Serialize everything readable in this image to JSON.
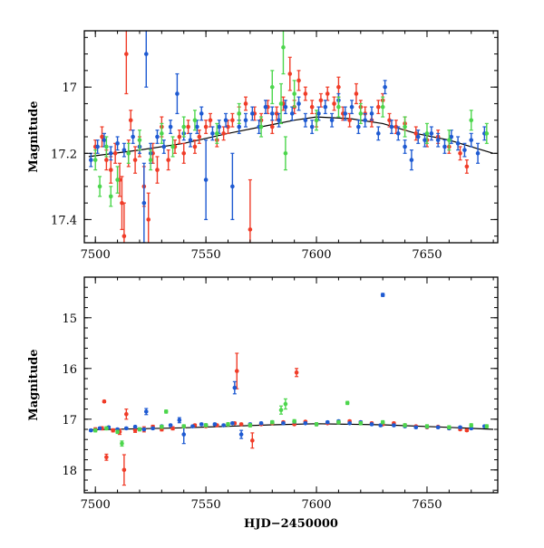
{
  "colors": {
    "red": "#f03c28",
    "blue": "#1e5ad2",
    "green": "#4cd64c",
    "model": "#000000"
  },
  "chart_data": [
    {
      "type": "scatter",
      "panel": "top",
      "title": "",
      "xlabel": "",
      "ylabel": "Magnitude",
      "xlim": [
        7495,
        7682
      ],
      "ylim": [
        16.83,
        17.47
      ],
      "y_inverted": true,
      "xticks": [
        7500,
        7550,
        7600,
        7650
      ],
      "xtick_labels": [
        "7500",
        "7550",
        "7600",
        "7650"
      ],
      "yticks": [
        17.0,
        17.2,
        17.4
      ],
      "ytick_labels": [
        "17",
        "17.2",
        "17.4"
      ],
      "grid": false,
      "legend": "none",
      "model_curve": {
        "x": [
          7497,
          7520,
          7540,
          7560,
          7575,
          7590,
          7600,
          7615,
          7630,
          7645,
          7660,
          7680
        ],
        "y": [
          17.21,
          17.19,
          17.17,
          17.14,
          17.12,
          17.1,
          17.09,
          17.095,
          17.11,
          17.14,
          17.16,
          17.2
        ]
      },
      "series": [
        {
          "color": "red",
          "x": [
            7500,
            7503,
            7505,
            7507,
            7509,
            7511,
            7512,
            7513,
            7514,
            7515,
            7516,
            7518,
            7520,
            7522,
            7524,
            7526,
            7528,
            7530,
            7533,
            7536,
            7538,
            7540,
            7542,
            7545,
            7547,
            7550,
            7552,
            7555,
            7558,
            7560,
            7562,
            7565,
            7568,
            7570,
            7572,
            7575,
            7578,
            7580,
            7582,
            7585,
            7588,
            7590,
            7592,
            7595,
            7598,
            7600,
            7602,
            7605,
            7608,
            7610,
            7612,
            7615,
            7618,
            7620,
            7622,
            7625,
            7628,
            7630,
            7633,
            7636,
            7640,
            7645,
            7650,
            7655,
            7660,
            7665,
            7668
          ],
          "y": [
            17.18,
            17.15,
            17.22,
            17.25,
            17.2,
            17.28,
            17.35,
            17.45,
            16.9,
            17.2,
            17.1,
            17.22,
            17.18,
            17.3,
            17.4,
            17.2,
            17.25,
            17.12,
            17.22,
            17.18,
            17.15,
            17.2,
            17.12,
            17.18,
            17.15,
            17.12,
            17.1,
            17.16,
            17.14,
            17.12,
            17.1,
            17.08,
            17.05,
            17.43,
            17.08,
            17.1,
            17.06,
            17.12,
            17.08,
            17.05,
            16.96,
            17.06,
            16.98,
            17.02,
            17.06,
            17.1,
            17.04,
            17.02,
            17.05,
            17.0,
            17.08,
            17.1,
            17.02,
            17.06,
            17.08,
            17.1,
            17.06,
            17.04,
            17.1,
            17.12,
            17.11,
            17.14,
            17.16,
            17.15,
            17.18,
            17.2,
            17.24
          ],
          "err": [
            0.02,
            0.03,
            0.03,
            0.04,
            0.03,
            0.05,
            0.08,
            0.1,
            0.12,
            0.04,
            0.03,
            0.04,
            0.03,
            0.06,
            0.08,
            0.03,
            0.04,
            0.03,
            0.03,
            0.02,
            0.02,
            0.03,
            0.02,
            0.02,
            0.02,
            0.02,
            0.02,
            0.02,
            0.02,
            0.02,
            0.02,
            0.02,
            0.02,
            0.15,
            0.02,
            0.02,
            0.02,
            0.02,
            0.02,
            0.02,
            0.05,
            0.02,
            0.03,
            0.02,
            0.02,
            0.02,
            0.02,
            0.02,
            0.02,
            0.03,
            0.02,
            0.02,
            0.03,
            0.02,
            0.02,
            0.02,
            0.02,
            0.02,
            0.02,
            0.02,
            0.02,
            0.02,
            0.02,
            0.02,
            0.02,
            0.02,
            0.02
          ]
        },
        {
          "color": "blue",
          "x": [
            7498,
            7501,
            7504,
            7507,
            7510,
            7513,
            7517,
            7520,
            7522,
            7523,
            7525,
            7528,
            7531,
            7534,
            7537,
            7540,
            7543,
            7546,
            7548,
            7550,
            7553,
            7556,
            7559,
            7562,
            7565,
            7568,
            7571,
            7574,
            7577,
            7580,
            7583,
            7586,
            7589,
            7592,
            7595,
            7598,
            7601,
            7604,
            7607,
            7610,
            7613,
            7616,
            7619,
            7622,
            7625,
            7628,
            7631,
            7634,
            7637,
            7640,
            7643,
            7646,
            7649,
            7652,
            7655,
            7658,
            7661,
            7664,
            7667,
            7670,
            7673,
            7676
          ],
          "y": [
            17.22,
            17.18,
            17.16,
            17.2,
            17.17,
            17.19,
            17.15,
            17.18,
            17.35,
            16.9,
            17.2,
            17.15,
            17.18,
            17.12,
            17.02,
            17.14,
            17.16,
            17.12,
            17.08,
            17.28,
            17.14,
            17.12,
            17.1,
            17.3,
            17.12,
            17.1,
            17.08,
            17.12,
            17.06,
            17.08,
            17.1,
            17.06,
            17.08,
            17.05,
            17.1,
            17.12,
            17.08,
            17.06,
            17.1,
            17.04,
            17.08,
            17.06,
            17.12,
            17.1,
            17.08,
            17.14,
            17.0,
            17.12,
            17.14,
            17.18,
            17.22,
            17.15,
            17.16,
            17.14,
            17.16,
            17.18,
            17.15,
            17.17,
            17.19,
            17.16,
            17.2,
            17.14
          ],
          "err": [
            0.02,
            0.02,
            0.02,
            0.02,
            0.02,
            0.02,
            0.02,
            0.02,
            0.12,
            0.1,
            0.03,
            0.02,
            0.02,
            0.02,
            0.06,
            0.02,
            0.02,
            0.02,
            0.02,
            0.12,
            0.02,
            0.02,
            0.02,
            0.1,
            0.02,
            0.02,
            0.02,
            0.02,
            0.02,
            0.02,
            0.02,
            0.02,
            0.02,
            0.02,
            0.02,
            0.02,
            0.02,
            0.02,
            0.02,
            0.02,
            0.02,
            0.02,
            0.02,
            0.02,
            0.02,
            0.02,
            0.02,
            0.02,
            0.02,
            0.02,
            0.03,
            0.02,
            0.02,
            0.02,
            0.02,
            0.02,
            0.02,
            0.02,
            0.02,
            0.02,
            0.03,
            0.02
          ]
        },
        {
          "color": "green",
          "x": [
            7500,
            7502,
            7505,
            7507,
            7510,
            7515,
            7520,
            7525,
            7530,
            7535,
            7540,
            7545,
            7555,
            7565,
            7575,
            7580,
            7584,
            7585,
            7586,
            7590,
            7600,
            7610,
            7620,
            7630,
            7640,
            7650,
            7660,
            7670,
            7677
          ],
          "y": [
            17.22,
            17.3,
            17.18,
            17.33,
            17.28,
            17.2,
            17.16,
            17.22,
            17.14,
            17.18,
            17.12,
            17.1,
            17.14,
            17.08,
            17.12,
            17.0,
            17.05,
            16.88,
            17.2,
            17.02,
            17.1,
            17.06,
            17.08,
            17.06,
            17.12,
            17.14,
            17.16,
            17.1,
            17.14
          ],
          "err": [
            0.03,
            0.03,
            0.03,
            0.03,
            0.04,
            0.03,
            0.03,
            0.03,
            0.03,
            0.03,
            0.03,
            0.03,
            0.03,
            0.03,
            0.03,
            0.05,
            0.06,
            0.08,
            0.05,
            0.04,
            0.03,
            0.03,
            0.03,
            0.03,
            0.03,
            0.03,
            0.03,
            0.03,
            0.03
          ]
        }
      ]
    },
    {
      "type": "scatter",
      "panel": "bottom",
      "title": "",
      "xlabel": "HJD−2450000",
      "ylabel": "Magnitude",
      "xlim": [
        7495,
        7682
      ],
      "ylim": [
        14.2,
        18.45
      ],
      "y_inverted": true,
      "xticks": [
        7500,
        7550,
        7600,
        7650
      ],
      "xtick_labels": [
        "7500",
        "7550",
        "7600",
        "7650"
      ],
      "yticks": [
        15,
        16,
        17,
        18
      ],
      "ytick_labels": [
        "15",
        "16",
        "17",
        "18"
      ],
      "grid": false,
      "legend": "none",
      "model_curve": {
        "x": [
          7497,
          7540,
          7580,
          7600,
          7630,
          7660,
          7680
        ],
        "y": [
          17.21,
          17.17,
          17.11,
          17.09,
          17.11,
          17.16,
          17.2
        ]
      },
      "series": [
        {
          "color": "red",
          "x": [
            7500,
            7503,
            7504,
            7505,
            7508,
            7511,
            7513,
            7514,
            7518,
            7522,
            7526,
            7530,
            7535,
            7540,
            7545,
            7550,
            7555,
            7560,
            7563,
            7564,
            7566,
            7570,
            7571,
            7575,
            7580,
            7585,
            7590,
            7591,
            7595,
            7600,
            7605,
            7610,
            7615,
            7620,
            7625,
            7630,
            7635,
            7640,
            7645,
            7650,
            7655,
            7660,
            7665,
            7668
          ],
          "y": [
            17.2,
            17.18,
            16.65,
            17.75,
            17.22,
            17.25,
            18.0,
            16.9,
            17.22,
            17.2,
            17.15,
            17.2,
            17.18,
            17.15,
            17.12,
            17.14,
            17.12,
            17.1,
            17.08,
            16.05,
            17.1,
            17.12,
            17.42,
            17.1,
            17.08,
            17.06,
            17.1,
            16.08,
            17.05,
            17.1,
            17.08,
            17.06,
            17.04,
            17.06,
            17.08,
            17.1,
            17.08,
            17.12,
            17.14,
            17.16,
            17.15,
            17.18,
            17.2,
            17.22
          ],
          "err": [
            0.03,
            0.03,
            0.02,
            0.06,
            0.03,
            0.05,
            0.3,
            0.1,
            0.04,
            0.05,
            0.03,
            0.03,
            0.03,
            0.02,
            0.02,
            0.02,
            0.02,
            0.02,
            0.02,
            0.35,
            0.02,
            0.02,
            0.15,
            0.02,
            0.02,
            0.02,
            0.02,
            0.08,
            0.02,
            0.02,
            0.02,
            0.02,
            0.02,
            0.02,
            0.02,
            0.02,
            0.02,
            0.02,
            0.02,
            0.02,
            0.02,
            0.02,
            0.02,
            0.02
          ]
        },
        {
          "color": "blue",
          "x": [
            7498,
            7502,
            7506,
            7510,
            7514,
            7518,
            7522,
            7523,
            7526,
            7530,
            7534,
            7538,
            7540,
            7544,
            7548,
            7550,
            7554,
            7558,
            7562,
            7563,
            7566,
            7570,
            7575,
            7580,
            7585,
            7590,
            7595,
            7600,
            7605,
            7610,
            7615,
            7620,
            7625,
            7629,
            7630,
            7635,
            7640,
            7645,
            7650,
            7655,
            7660,
            7665,
            7670,
            7676
          ],
          "y": [
            17.22,
            17.18,
            17.16,
            17.2,
            17.18,
            17.15,
            17.2,
            16.85,
            17.18,
            17.14,
            17.12,
            17.02,
            17.3,
            17.14,
            17.1,
            17.12,
            17.1,
            17.12,
            17.08,
            16.38,
            17.3,
            17.1,
            17.08,
            17.06,
            17.08,
            17.05,
            17.08,
            17.1,
            17.06,
            17.04,
            17.08,
            17.06,
            17.1,
            17.12,
            14.55,
            17.12,
            17.14,
            17.16,
            17.15,
            17.16,
            17.18,
            17.16,
            17.18,
            17.14
          ],
          "err": [
            0.02,
            0.02,
            0.02,
            0.02,
            0.02,
            0.02,
            0.02,
            0.06,
            0.02,
            0.02,
            0.02,
            0.05,
            0.18,
            0.02,
            0.02,
            0.02,
            0.02,
            0.02,
            0.02,
            0.12,
            0.08,
            0.02,
            0.02,
            0.02,
            0.02,
            0.02,
            0.02,
            0.02,
            0.02,
            0.02,
            0.02,
            0.02,
            0.02,
            0.02,
            0.03,
            0.02,
            0.02,
            0.02,
            0.02,
            0.02,
            0.02,
            0.02,
            0.02,
            0.02
          ]
        },
        {
          "color": "green",
          "x": [
            7500,
            7505,
            7510,
            7512,
            7520,
            7530,
            7532,
            7540,
            7550,
            7560,
            7570,
            7580,
            7584,
            7586,
            7590,
            7600,
            7610,
            7614,
            7620,
            7630,
            7640,
            7650,
            7660,
            7670,
            7677
          ],
          "y": [
            17.22,
            17.18,
            17.25,
            17.48,
            17.2,
            17.15,
            16.85,
            17.14,
            17.12,
            17.1,
            17.12,
            17.06,
            16.82,
            16.7,
            17.04,
            17.1,
            17.06,
            16.68,
            17.08,
            17.06,
            17.12,
            17.14,
            17.16,
            17.12,
            17.14
          ],
          "err": [
            0.03,
            0.03,
            0.03,
            0.05,
            0.03,
            0.03,
            0.03,
            0.03,
            0.03,
            0.03,
            0.03,
            0.03,
            0.08,
            0.1,
            0.03,
            0.03,
            0.03,
            0.03,
            0.03,
            0.03,
            0.03,
            0.03,
            0.03,
            0.03,
            0.03
          ]
        }
      ]
    }
  ]
}
